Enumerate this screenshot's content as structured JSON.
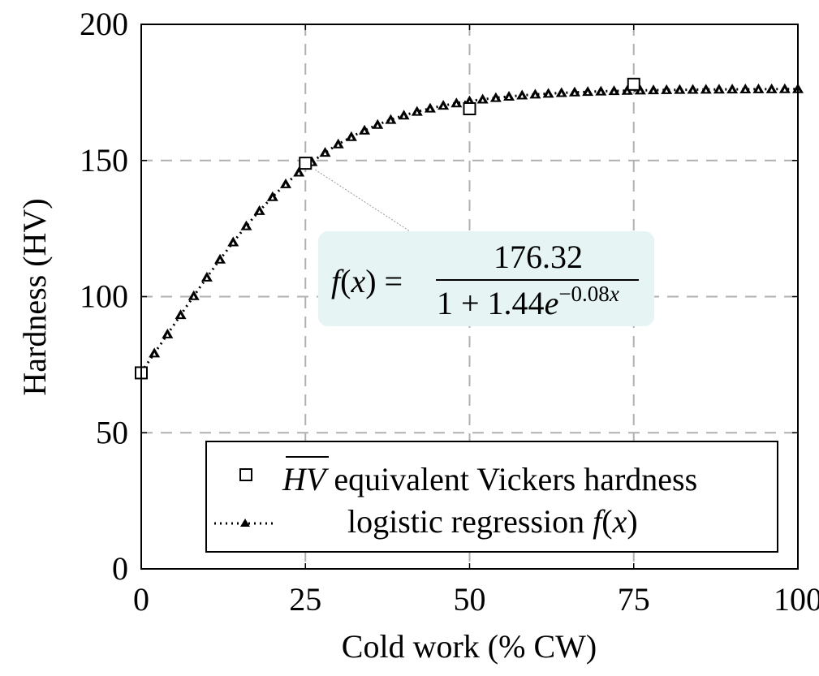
{
  "chart_data": {
    "type": "scatter",
    "title": "",
    "xlabel": "Cold work (% CW)",
    "ylabel": "Hardness (HV)",
    "xlim": [
      0,
      100
    ],
    "ylim": [
      0,
      200
    ],
    "xticks": [
      0,
      25,
      50,
      75,
      100
    ],
    "xtick_labels": [
      "0",
      "25",
      "50",
      "75",
      "100"
    ],
    "yticks": [
      0,
      50,
      100,
      150,
      200
    ],
    "ytick_labels": [
      "0",
      "50",
      "100",
      "150",
      "200"
    ],
    "grid": true,
    "legend_position": "lower right",
    "series": [
      {
        "name": "HV equivalent Vickers hardness",
        "marker": "square-open",
        "x": [
          0,
          25,
          50,
          75
        ],
        "y": [
          72,
          149,
          169,
          178
        ]
      },
      {
        "name": "logistic regression f(x)",
        "marker": "triangle-filled",
        "line": "dotted",
        "function": {
          "L": 176.32,
          "a": 1.44,
          "k": 0.08
        },
        "x_start": 0,
        "x_end": 100,
        "x_step": 2
      }
    ],
    "annotation": {
      "lhs": "f(x) =",
      "numerator": "176.32",
      "denominator_base": "1 + 1.44e",
      "denominator_exp": "−0.08x",
      "points_to_x": 25,
      "points_to_y": 149,
      "box_color": "#e6f4f4"
    }
  },
  "legend": {
    "items": [
      {
        "symbol": "HV",
        "text": " equivalent Vickers hardness"
      },
      {
        "symbol": "",
        "text": "logistic regression ",
        "math": "f(x)"
      }
    ]
  }
}
